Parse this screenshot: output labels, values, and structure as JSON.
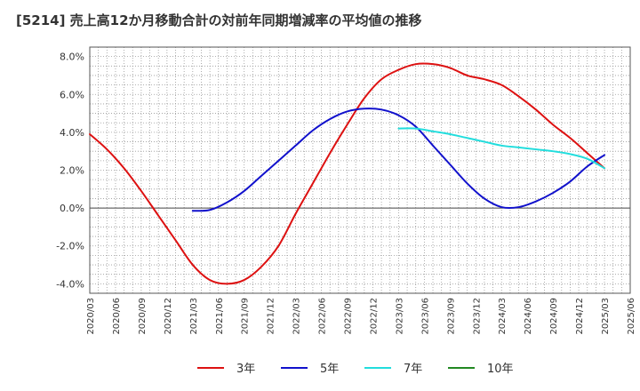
{
  "title": "[5214]  売上高12か月移動合計の対前年同期増減率の平均値の推移",
  "chart_data": {
    "type": "line",
    "title": "[5214]  売上高12か月移動合計の対前年同期増減率の平均値の推移",
    "xlabel": "",
    "ylabel": "",
    "x_ticks": [
      "2020/03",
      "2020/06",
      "2020/09",
      "2020/12",
      "2021/03",
      "2021/06",
      "2021/09",
      "2021/12",
      "2022/03",
      "2022/06",
      "2022/09",
      "2022/12",
      "2023/03",
      "2023/06",
      "2023/09",
      "2023/12",
      "2024/03",
      "2024/06",
      "2024/09",
      "2024/12",
      "2025/03",
      "2025/06"
    ],
    "y_ticks": [
      -4,
      -2,
      0,
      2,
      4,
      6,
      8
    ],
    "y_tick_labels": [
      "-4.0%",
      "-2.0%",
      "0.0%",
      "2.0%",
      "4.0%",
      "6.0%",
      "8.0%"
    ],
    "ylim": [
      -4.5,
      8.5
    ],
    "grid": true,
    "legend_position": "bottom",
    "series": [
      {
        "name": "3年",
        "color": "#dd1111",
        "x": [
          "2020/03",
          "2020/05",
          "2020/07",
          "2020/09",
          "2020/11",
          "2021/01",
          "2021/03",
          "2021/05",
          "2021/07",
          "2021/09",
          "2021/11",
          "2022/01",
          "2022/03",
          "2022/05",
          "2022/07",
          "2022/09",
          "2022/11",
          "2023/01",
          "2023/03",
          "2023/05",
          "2023/07",
          "2023/09",
          "2023/11",
          "2024/01",
          "2024/03",
          "2024/05",
          "2024/07",
          "2024/09",
          "2024/11",
          "2025/01",
          "2025/03"
        ],
        "values": [
          3.9,
          3.1,
          2.1,
          0.9,
          -0.4,
          -1.7,
          -3.0,
          -3.8,
          -4.0,
          -3.8,
          -3.1,
          -2.0,
          -0.3,
          1.3,
          2.9,
          4.4,
          5.8,
          6.8,
          7.3,
          7.6,
          7.6,
          7.4,
          7.0,
          6.8,
          6.5,
          5.9,
          5.2,
          4.4,
          3.7,
          2.9,
          2.1
        ]
      },
      {
        "name": "5年",
        "color": "#1111cc",
        "x": [
          "2021/03",
          "2021/05",
          "2021/07",
          "2021/09",
          "2021/11",
          "2022/01",
          "2022/03",
          "2022/05",
          "2022/07",
          "2022/09",
          "2022/11",
          "2023/01",
          "2023/03",
          "2023/05",
          "2023/07",
          "2023/09",
          "2023/11",
          "2024/01",
          "2024/03",
          "2024/05",
          "2024/07",
          "2024/09",
          "2024/11",
          "2025/01",
          "2025/03"
        ],
        "values": [
          -0.15,
          -0.1,
          0.3,
          0.9,
          1.7,
          2.5,
          3.3,
          4.1,
          4.7,
          5.1,
          5.25,
          5.2,
          4.9,
          4.3,
          3.3,
          2.3,
          1.3,
          0.5,
          0.05,
          0.05,
          0.35,
          0.8,
          1.4,
          2.2,
          2.8
        ]
      },
      {
        "name": "7年",
        "color": "#22dddd",
        "x": [
          "2023/03",
          "2023/05",
          "2023/07",
          "2023/09",
          "2023/11",
          "2024/01",
          "2024/03",
          "2024/05",
          "2024/07",
          "2024/09",
          "2024/11",
          "2025/01",
          "2025/03"
        ],
        "values": [
          4.2,
          4.2,
          4.05,
          3.9,
          3.7,
          3.5,
          3.3,
          3.2,
          3.1,
          3.0,
          2.85,
          2.6,
          2.1
        ]
      },
      {
        "name": "10年",
        "color": "#228822",
        "x": [],
        "values": []
      }
    ]
  }
}
